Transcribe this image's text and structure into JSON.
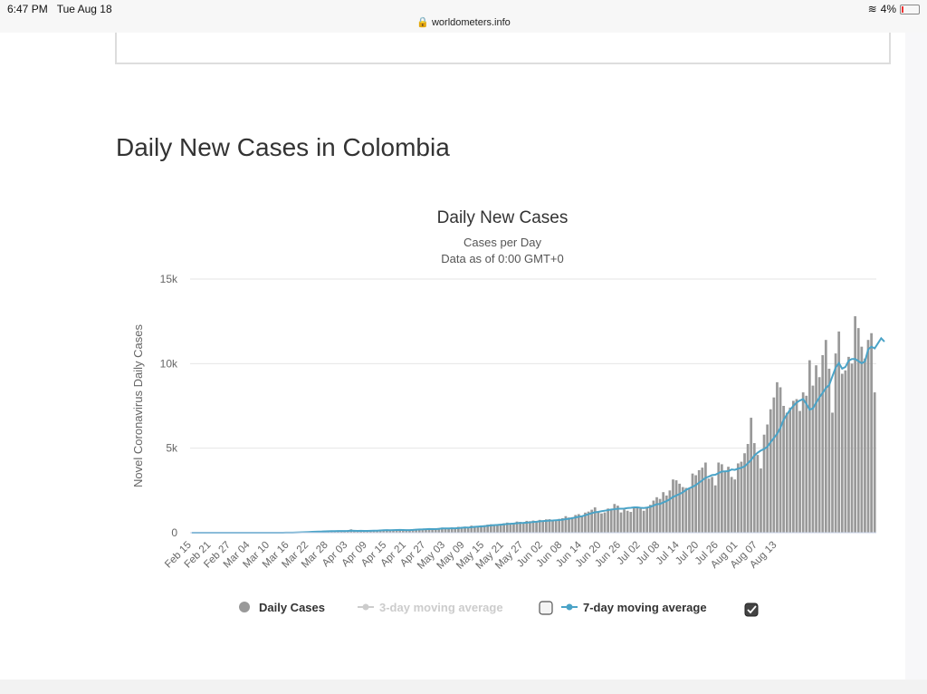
{
  "status_bar": {
    "time": "6:47 PM",
    "date": "Tue Aug 18",
    "url": "worldometers.info",
    "battery": "4%"
  },
  "page": {
    "heading": "Daily New Cases in Colombia"
  },
  "chart_data": {
    "type": "bar",
    "title": "Daily New Cases",
    "subtitle": "Cases per Day",
    "subtitle2": "Data as of 0:00 GMT+0",
    "ylabel": "Novel Coronavirus Daily Cases",
    "xlabel": "",
    "ylim": [
      0,
      15000
    ],
    "yticks": [
      0,
      5000,
      10000,
      15000
    ],
    "ytick_labels": [
      "0",
      "5k",
      "10k",
      "15k"
    ],
    "grid": true,
    "legend_position": "bottom",
    "x_start": "Feb 15",
    "x_end": "Aug 17",
    "xtick_labels": [
      "Feb 15",
      "Feb 21",
      "Feb 27",
      "Mar 04",
      "Mar 10",
      "Mar 16",
      "Mar 22",
      "Mar 28",
      "Apr 03",
      "Apr 09",
      "Apr 15",
      "Apr 21",
      "Apr 27",
      "May 03",
      "May 09",
      "May 15",
      "May 21",
      "May 27",
      "Jun 02",
      "Jun 08",
      "Jun 14",
      "Jun 20",
      "Jun 26",
      "Jul 02",
      "Jul 08",
      "Jul 14",
      "Jul 20",
      "Jul 26",
      "Aug 01",
      "Aug 07",
      "Aug 13"
    ],
    "series": [
      {
        "name": "Daily Cases",
        "color": "#999999",
        "values": [
          0,
          0,
          0,
          0,
          0,
          0,
          0,
          0,
          0,
          0,
          0,
          0,
          0,
          0,
          0,
          0,
          0,
          0,
          0,
          0,
          0,
          0,
          0,
          0,
          1,
          0,
          1,
          3,
          6,
          12,
          13,
          21,
          29,
          43,
          46,
          65,
          74,
          84,
          70,
          98,
          66,
          100,
          126,
          105,
          91,
          96,
          84,
          125,
          138,
          200,
          98,
          88,
          118,
          101,
          115,
          146,
          154,
          149,
          183,
          170,
          145,
          114,
          131,
          166,
          180,
          140,
          120,
          160,
          190,
          220,
          205,
          175,
          230,
          260,
          190,
          230,
          280,
          300,
          260,
          240,
          310,
          250,
          350,
          320,
          360,
          290,
          420,
          400,
          370,
          430,
          440,
          480,
          500,
          420,
          510,
          520,
          560,
          600,
          480,
          540,
          660,
          640,
          610,
          700,
          680,
          720,
          640,
          760,
          720,
          790,
          800,
          750,
          700,
          820,
          860,
          980,
          900,
          920,
          1050,
          1100,
          1000,
          1190,
          1250,
          1360,
          1500,
          1260,
          1140,
          1200,
          1430,
          1350,
          1700,
          1600,
          1200,
          1370,
          1300,
          1230,
          1450,
          1500,
          1420,
          1300,
          1500,
          1650,
          1900,
          2100,
          2000,
          2400,
          2200,
          2500,
          3150,
          3100,
          2900,
          2700,
          2650,
          2600,
          3500,
          3400,
          3700,
          3850,
          4150,
          3200,
          3300,
          2800,
          4150,
          4050,
          3650,
          3900,
          3300,
          3150,
          4100,
          4200,
          4700,
          5250,
          6800,
          5300,
          4600,
          3800,
          5800,
          6400,
          7300,
          8000,
          8900,
          8600,
          7500,
          7100,
          7400,
          7800,
          7900,
          7200,
          8300,
          8100,
          10200,
          8700,
          9900,
          9200,
          10500,
          11400,
          9700,
          7100,
          10600,
          11900,
          9400,
          9600,
          10400,
          10000,
          12800,
          12100,
          11000,
          10300,
          11400,
          11800,
          8300
        ]
      },
      {
        "name": "3-day moving average",
        "visible": false,
        "color": "#cccccc"
      },
      {
        "name": "7-day moving average",
        "visible": true,
        "color": "#4aa3c7",
        "values": [
          0,
          0,
          0,
          0,
          0,
          0,
          0,
          0,
          0,
          0,
          0,
          0,
          0,
          0,
          0,
          0,
          0,
          0,
          0,
          0,
          0,
          0,
          0,
          0,
          0,
          0,
          0,
          1,
          2,
          4,
          5,
          8,
          12,
          18,
          24,
          33,
          42,
          52,
          60,
          69,
          72,
          80,
          90,
          95,
          97,
          98,
          99,
          101,
          105,
          118,
          114,
          110,
          115,
          110,
          110,
          114,
          122,
          123,
          134,
          145,
          151,
          150,
          155,
          160,
          165,
          158,
          153,
          155,
          165,
          180,
          191,
          198,
          210,
          222,
          214,
          216,
          227,
          252,
          256,
          255,
          261,
          262,
          275,
          293,
          307,
          305,
          325,
          346,
          362,
          377,
          388,
          409,
          435,
          449,
          460,
          476,
          494,
          515,
          531,
          540,
          563,
          577,
          583,
          596,
          613,
          635,
          650,
          674,
          688,
          704,
          719,
          726,
          740,
          750,
          770,
          801,
          822,
          860,
          905,
          942,
          974,
          1034,
          1093,
          1154,
          1211,
          1234,
          1270,
          1303,
          1336,
          1371,
          1389,
          1420,
          1420,
          1428,
          1460,
          1475,
          1500,
          1497,
          1475,
          1460,
          1488,
          1530,
          1606,
          1690,
          1700,
          1790,
          1870,
          1980,
          2120,
          2200,
          2290,
          2390,
          2530,
          2630,
          2710,
          2820,
          2960,
          3100,
          3250,
          3320,
          3410,
          3430,
          3530,
          3620,
          3630,
          3640,
          3740,
          3720,
          3790,
          3840,
          3920,
          4110,
          4300,
          4560,
          4730,
          4860,
          4950,
          5080,
          5360,
          5600,
          5850,
          6200,
          6680,
          6990,
          7270,
          7500,
          7700,
          7820,
          7900,
          7620,
          7280,
          7350,
          7690,
          8000,
          8270,
          8560,
          8730,
          9250,
          9760,
          10030,
          9700,
          9800,
          10170,
          10270,
          10270,
          10150,
          10020,
          10130,
          10840,
          11000,
          10900,
          11200,
          11500,
          11300
        ]
      }
    ]
  },
  "legend": {
    "daily_cases": "Daily Cases",
    "three_day": "3-day moving average",
    "seven_day": "7-day moving average"
  },
  "colors": {
    "bar": "#999999",
    "line": "#4aa3c7",
    "grid": "#e6e6e6",
    "text": "#333333"
  }
}
